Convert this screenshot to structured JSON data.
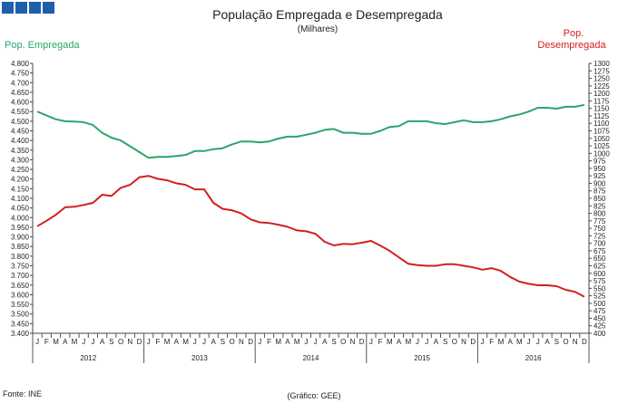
{
  "logo": {
    "squares": 4,
    "color": "#1f5fa8"
  },
  "chart_data": {
    "type": "line",
    "title": "População Empregada e Desempregada",
    "subtitle": "(Milhares)",
    "source": "Fonte: INE",
    "credit": "(Gráfico: GEE)",
    "month_letters": [
      "J",
      "F",
      "M",
      "A",
      "M",
      "J",
      "J",
      "A",
      "S",
      "O",
      "N",
      "D"
    ],
    "years": [
      "2012",
      "2013",
      "2014",
      "2015",
      "2016"
    ],
    "left_axis": {
      "label": "Pop. Empregada",
      "ylim": [
        3400,
        4800
      ],
      "step": 50,
      "color": "#2aa66b",
      "ticks": [
        "3.400",
        "3.450",
        "3.500",
        "3.550",
        "3.600",
        "3.650",
        "3.700",
        "3.750",
        "3.800",
        "3.850",
        "3.900",
        "3.950",
        "4.000",
        "4.050",
        "4.100",
        "4.150",
        "4.200",
        "4.250",
        "4.300",
        "4.350",
        "4.400",
        "4.450",
        "4.500",
        "4.550",
        "4.600",
        "4.650",
        "4.700",
        "4.750",
        "4.800"
      ]
    },
    "right_axis": {
      "label_line1": "Pop.",
      "label_line2": "Desempregada",
      "ylim": [
        400,
        1300
      ],
      "step": 25,
      "color": "#d21f1f",
      "ticks": [
        "400",
        "425",
        "450",
        "475",
        "500",
        "525",
        "550",
        "575",
        "600",
        "625",
        "650",
        "675",
        "700",
        "725",
        "750",
        "775",
        "800",
        "825",
        "850",
        "875",
        "900",
        "925",
        "950",
        "975",
        "1000",
        "1025",
        "1050",
        "1075",
        "1100",
        "1125",
        "1150",
        "1175",
        "1200",
        "1225",
        "1250",
        "1275",
        "1300"
      ]
    },
    "series": [
      {
        "name": "Pop. Empregada",
        "axis": "left",
        "color": "#2aa66b",
        "values": [
          4550,
          4530,
          4510,
          4500,
          4498,
          4495,
          4480,
          4440,
          4415,
          4400,
          4370,
          4340,
          4310,
          4315,
          4315,
          4320,
          4325,
          4345,
          4345,
          4355,
          4360,
          4380,
          4395,
          4395,
          4390,
          4395,
          4410,
          4420,
          4420,
          4430,
          4440,
          4455,
          4460,
          4440,
          4440,
          4435,
          4435,
          4450,
          4470,
          4475,
          4500,
          4500,
          4500,
          4490,
          4485,
          4495,
          4505,
          4495,
          4495,
          4500,
          4510,
          4525,
          4535,
          4550,
          4570,
          4570,
          4565,
          4575,
          4575,
          4585
        ]
      },
      {
        "name": "Pop. Desempregada",
        "axis": "right",
        "color": "#d21f1f",
        "values": [
          757,
          775,
          795,
          820,
          822,
          828,
          835,
          862,
          858,
          885,
          895,
          920,
          925,
          915,
          910,
          900,
          895,
          880,
          880,
          835,
          815,
          810,
          800,
          780,
          770,
          768,
          762,
          755,
          743,
          740,
          732,
          705,
          693,
          698,
          697,
          702,
          708,
          692,
          675,
          653,
          632,
          627,
          625,
          625,
          630,
          630,
          625,
          620,
          612,
          617,
          608,
          588,
          572,
          565,
          560,
          560,
          557,
          545,
          538,
          522
        ]
      }
    ]
  }
}
